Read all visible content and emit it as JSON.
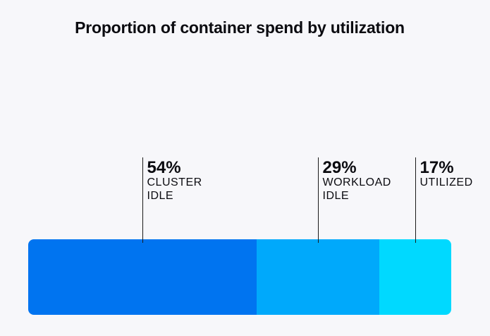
{
  "chart_data": {
    "type": "bar",
    "orientation": "horizontal-stacked-100",
    "title": "Proportion of container spend by utilization",
    "series": [
      {
        "value": 54,
        "value_label": "54%",
        "label_lines": [
          "CLUSTER",
          "IDLE"
        ],
        "color": "#0074f0"
      },
      {
        "value": 29,
        "value_label": "29%",
        "label_lines": [
          "WORKLOAD",
          "IDLE"
        ],
        "color": "#00a9fb"
      },
      {
        "value": 17,
        "value_label": "17%",
        "label_lines": [
          "UTILIZED"
        ],
        "color": "#00d9ff"
      }
    ],
    "total": 100,
    "grid": false,
    "legend": "none"
  }
}
